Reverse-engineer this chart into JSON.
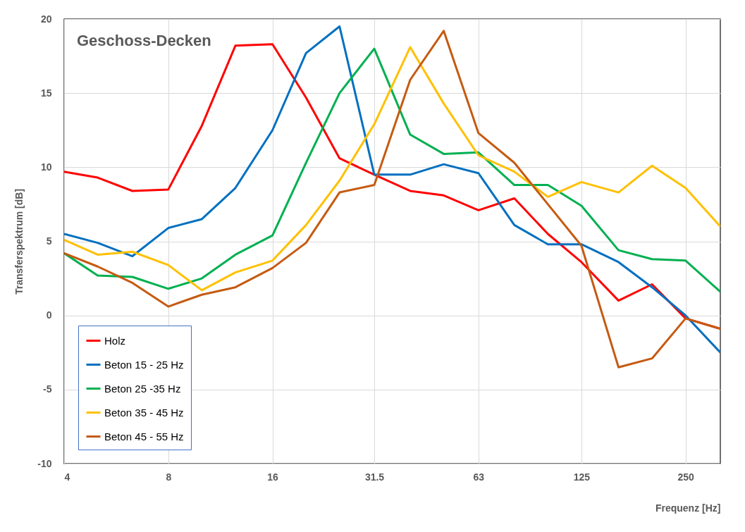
{
  "chart_data": {
    "type": "line",
    "title": "Geschoss-Decken",
    "xlabel": "Frequenz [Hz]",
    "ylabel": "Transferspektrum [dB]",
    "x": [
      4,
      5,
      6.3,
      8,
      10,
      12.5,
      16,
      20,
      25,
      31.5,
      40,
      50,
      63,
      80,
      100,
      125,
      160,
      200,
      250,
      315
    ],
    "log": "x",
    "xlim": [
      4,
      315
    ],
    "xticks": [
      4,
      8,
      16,
      31.5,
      63,
      125,
      250
    ],
    "ylim": [
      -10,
      20
    ],
    "yticks": [
      -10,
      -5,
      0,
      5,
      10,
      15,
      20
    ],
    "grid": true,
    "legend": "bottom left",
    "line_style": "solid",
    "series": [
      {
        "name": "Holz",
        "color": "#ff0000",
        "values": [
          9.7,
          9.3,
          8.4,
          8.5,
          12.8,
          18.2,
          18.3,
          14.7,
          10.6,
          9.5,
          8.4,
          8.1,
          7.1,
          7.9,
          5.5,
          3.6,
          1.0,
          2.1,
          -0.2,
          -0.9
        ]
      },
      {
        "name": "Beton 15 - 25 Hz",
        "color": "#0070c0",
        "values": [
          5.5,
          4.9,
          4.0,
          5.9,
          6.5,
          8.6,
          12.5,
          17.7,
          19.5,
          9.5,
          9.5,
          10.2,
          9.6,
          6.1,
          4.8,
          4.8,
          3.6,
          1.9,
          0.0,
          -2.5
        ]
      },
      {
        "name": "Beton 25 -35 Hz",
        "color": "#00b050",
        "values": [
          4.2,
          2.7,
          2.6,
          1.8,
          2.5,
          4.1,
          5.4,
          10.3,
          15.0,
          18.0,
          12.2,
          10.9,
          11.0,
          8.8,
          8.8,
          7.4,
          4.4,
          3.8,
          3.7,
          1.6
        ]
      },
      {
        "name": "Beton 35 - 45 Hz",
        "color": "#ffc000",
        "values": [
          5.1,
          4.1,
          4.3,
          3.4,
          1.7,
          2.9,
          3.7,
          6.1,
          9.1,
          12.9,
          18.1,
          14.3,
          10.8,
          9.7,
          8.0,
          9.0,
          8.3,
          10.1,
          8.6,
          6.0
        ]
      },
      {
        "name": "Beton 45 - 55 Hz",
        "color": "#c55a11",
        "values": [
          4.2,
          3.3,
          2.2,
          0.6,
          1.4,
          1.9,
          3.2,
          4.9,
          8.3,
          8.8,
          15.9,
          19.2,
          12.3,
          10.3,
          7.5,
          4.7,
          -3.5,
          -2.9,
          -0.2,
          -0.9
        ]
      }
    ]
  }
}
